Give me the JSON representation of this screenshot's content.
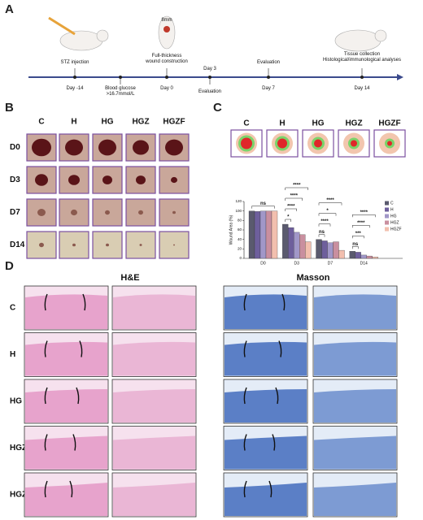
{
  "panels": [
    "A",
    "B",
    "C",
    "D"
  ],
  "timeline": {
    "top_labels": [
      [
        "STZ injection"
      ],
      [
        "8mm"
      ],
      [
        "Full-thickness",
        "wound construction"
      ],
      [
        "Day 3"
      ],
      [
        "Evaluation"
      ],
      [
        "Tissue collection",
        "Histological/immunological analyses"
      ]
    ],
    "bottom_labels": [
      [
        "Day -14"
      ],
      [
        "Blood glucose",
        ">16.7mmol/L"
      ],
      [
        "Day 0"
      ],
      [
        "Evaluation"
      ],
      [
        "Day 7"
      ],
      [
        "Day 14"
      ]
    ]
  },
  "groups": [
    "C",
    "H",
    "HG",
    "HGZ",
    "HGZF"
  ],
  "days": [
    "D0",
    "D3",
    "D7",
    "D14"
  ],
  "chart_data": {
    "type": "bar",
    "ylabel": "Wound Area (%)",
    "categories": [
      "D0",
      "D3",
      "D7",
      "D14"
    ],
    "series": [
      {
        "name": "C",
        "color": "#5a5a6e",
        "values": [
          100,
          72,
          40,
          15
        ]
      },
      {
        "name": "H",
        "color": "#6e5f9c",
        "values": [
          99,
          65,
          37,
          13
        ]
      },
      {
        "name": "HG",
        "color": "#a197c8",
        "values": [
          100,
          55,
          33,
          7
        ]
      },
      {
        "name": "HGZ",
        "color": "#c98f9f",
        "values": [
          100,
          50,
          35,
          5
        ]
      },
      {
        "name": "HGZF",
        "color": "#f2bfae",
        "values": [
          100,
          35,
          17,
          3
        ]
      }
    ],
    "ylim": [
      0,
      120
    ],
    "yticks": [
      0,
      20,
      40,
      60,
      80,
      100,
      120
    ],
    "legend": "upper right",
    "significance": [
      [
        "ns"
      ],
      [
        "****",
        "****",
        "****",
        "*"
      ],
      [
        "****",
        "*",
        "****",
        "ns"
      ],
      [
        "****",
        "****",
        "***",
        "ns"
      ]
    ]
  },
  "histology": {
    "stains": [
      "H&E",
      "Masson"
    ]
  }
}
